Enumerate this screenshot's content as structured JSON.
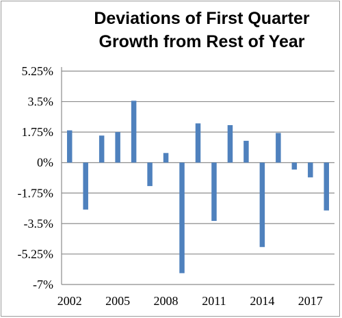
{
  "chart_data": {
    "type": "bar",
    "title_lines": [
      "Deviations of First Quarter",
      "Growth from Rest of Year"
    ],
    "xlabel": "",
    "ylabel": "",
    "ylim": [
      -7,
      5.25
    ],
    "y_ticks": [
      5.25,
      3.5,
      1.75,
      0,
      -1.75,
      -3.5,
      -5.25,
      -7
    ],
    "y_tick_labels": [
      "5.25%",
      "3.5%",
      "1.75%",
      "0%",
      "-1.75%",
      "-3.5%",
      "-5.25%",
      "-7%"
    ],
    "categories": [
      2002,
      2003,
      2004,
      2005,
      2006,
      2007,
      2008,
      2009,
      2010,
      2011,
      2012,
      2013,
      2014,
      2015,
      2016,
      2017,
      2018
    ],
    "x_tick_labels": [
      "2002",
      "2005",
      "2008",
      "2011",
      "2014",
      "2017"
    ],
    "values": [
      1.85,
      -2.7,
      1.55,
      1.75,
      3.55,
      -1.35,
      0.55,
      -6.35,
      2.25,
      -3.35,
      2.15,
      1.25,
      -4.85,
      1.7,
      -0.4,
      -0.85,
      -2.75
    ],
    "grid": {
      "horizontal": true,
      "vertical": false
    },
    "bar_color": "#4f81bd",
    "grid_color": "#8c8c8c"
  }
}
